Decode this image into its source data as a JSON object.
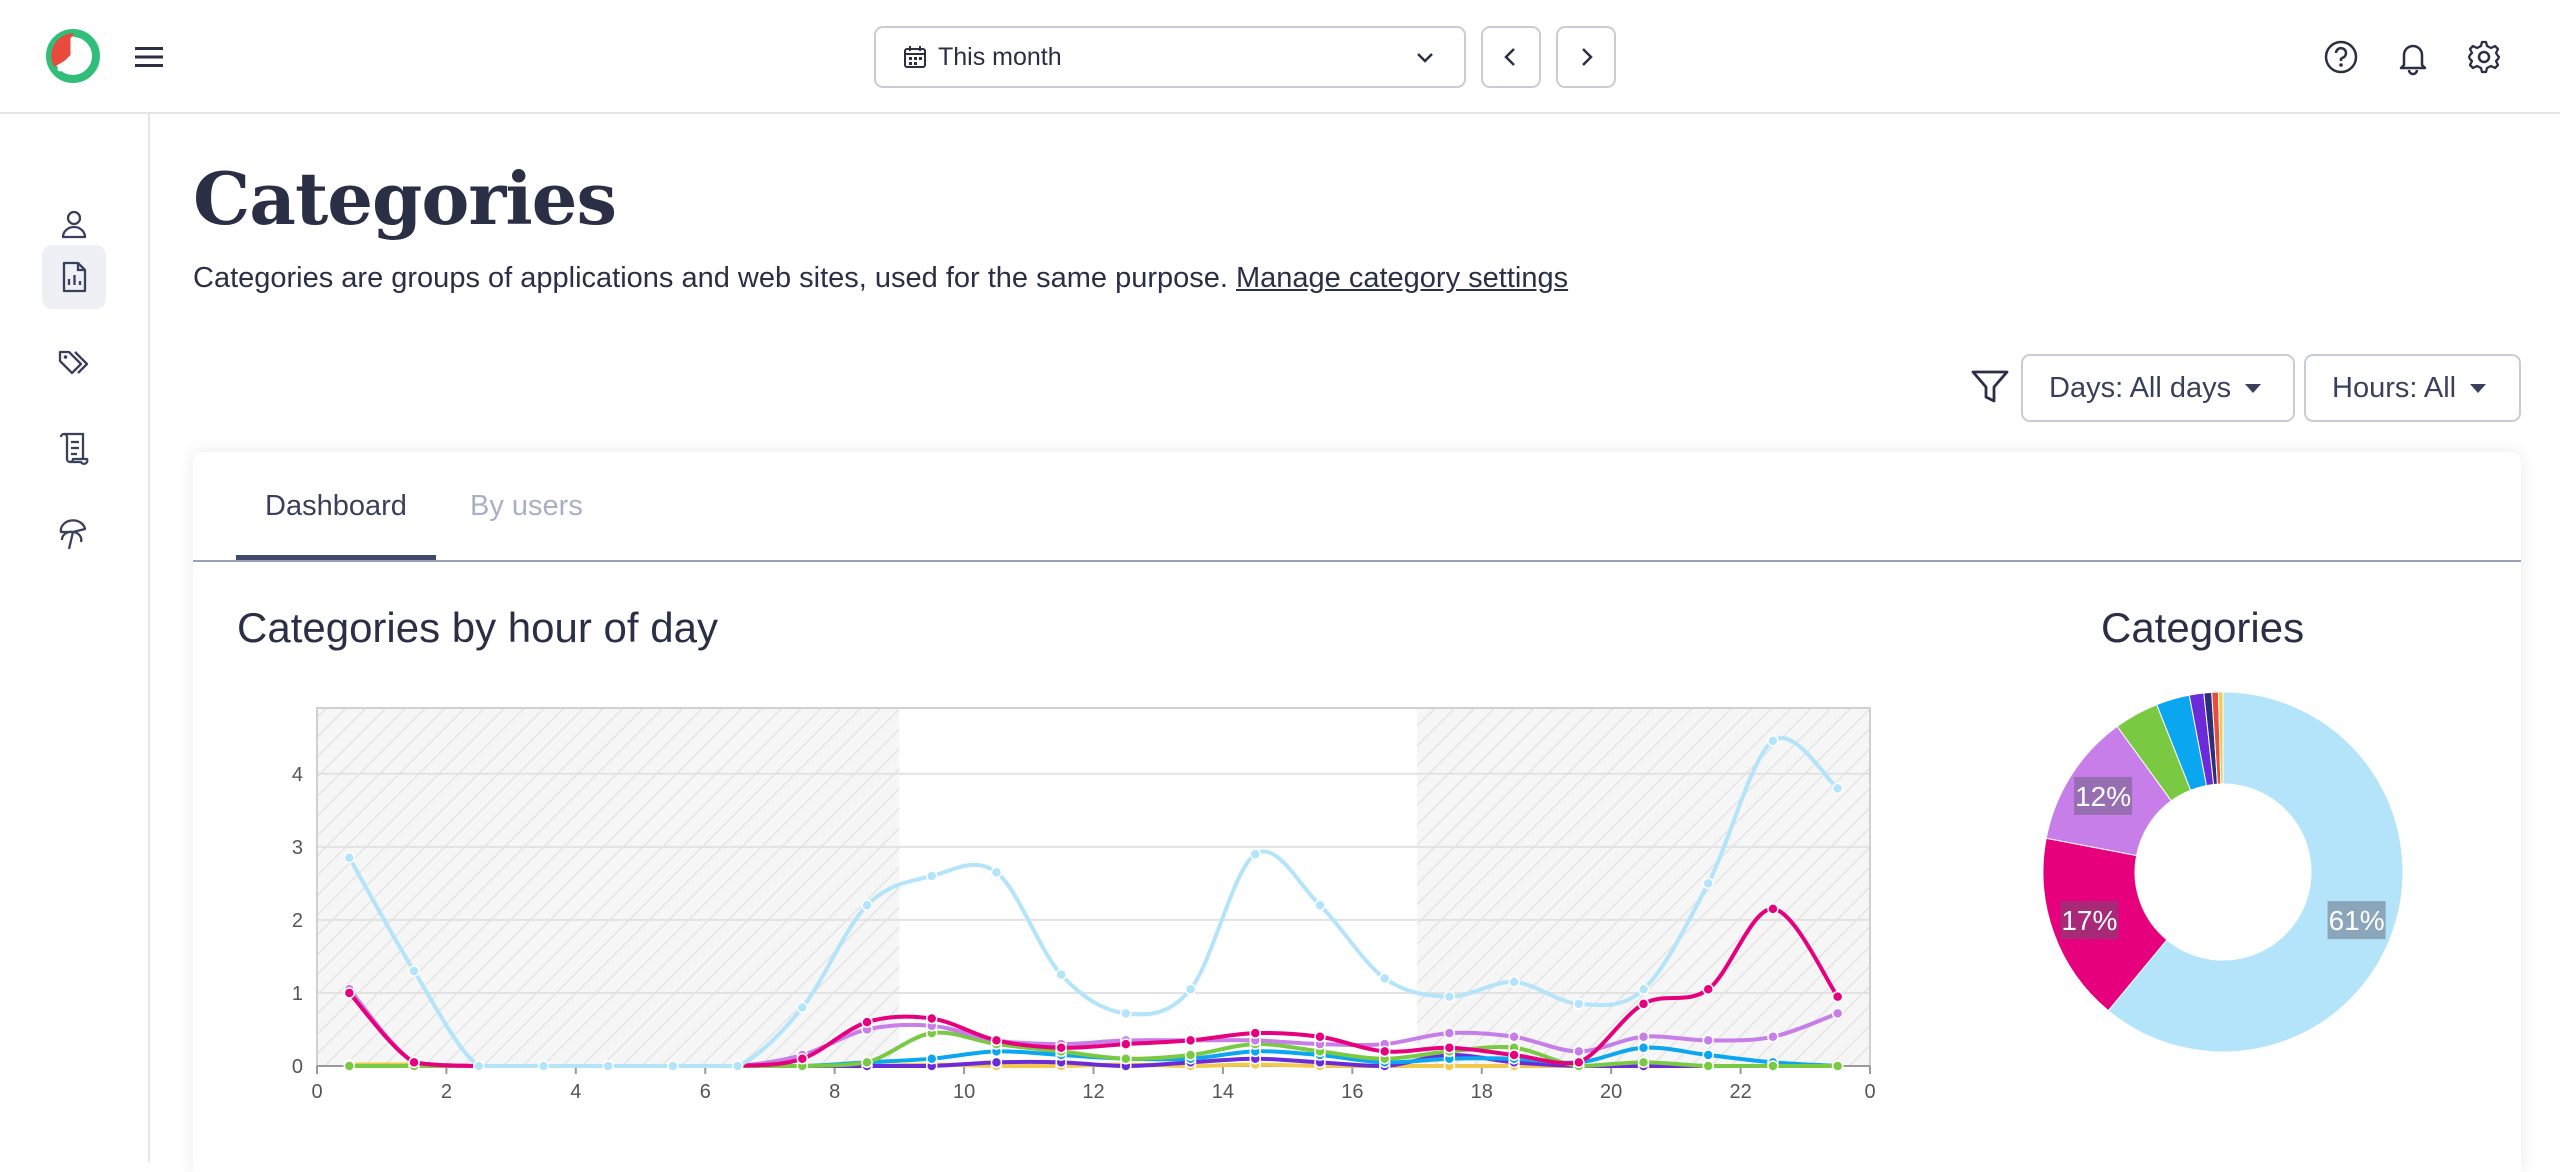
{
  "header": {
    "date_range": "This month",
    "icons": [
      "logo",
      "hamburger-icon",
      "calendar-icon",
      "chevron-down-icon",
      "chevron-left-icon",
      "chevron-right-icon",
      "help-icon",
      "bell-icon",
      "gear-icon"
    ]
  },
  "sidebar": {
    "items": [
      {
        "name": "user-icon",
        "active": false
      },
      {
        "name": "report-icon",
        "active": true
      },
      {
        "name": "tags-icon",
        "active": false
      },
      {
        "name": "log-icon",
        "active": false
      },
      {
        "name": "vacation-icon",
        "active": false
      }
    ]
  },
  "page": {
    "title": "Categories",
    "description": "Categories are groups of applications and web sites, used for the same purpose.",
    "manage_link": "Manage category settings"
  },
  "filters": {
    "days": "Days: All days",
    "hours": "Hours: All"
  },
  "tabs": [
    {
      "label": "Dashboard",
      "active": true
    },
    {
      "label": "By users",
      "active": false
    }
  ],
  "colors": {
    "accent": "#3f4a6e",
    "lightblue": "#b3e4f9",
    "pink": "#e6007e",
    "violet": "#c77ee8",
    "green": "#7ac943",
    "blue": "#0aa6ef",
    "purple": "#6c2bd9",
    "gold": "#f2c94c",
    "red": "#e74c3c"
  },
  "chart_data": [
    {
      "type": "line",
      "title": "Categories by hour of day",
      "x": [
        0.5,
        1.5,
        2.5,
        3.5,
        4.5,
        5.5,
        6.5,
        7.5,
        8.5,
        9.5,
        10.5,
        11.5,
        12.5,
        13.5,
        14.5,
        15.5,
        16.5,
        17.5,
        18.5,
        19.5,
        20.5,
        21.5,
        22.5,
        23.5
      ],
      "xticks": [
        "0",
        "2",
        "4",
        "6",
        "8",
        "10",
        "12",
        "14",
        "16",
        "18",
        "20",
        "22",
        "0"
      ],
      "yticks": [
        "0",
        "1",
        "2",
        "3",
        "4"
      ],
      "ylim": [
        0,
        4.9
      ],
      "shaded_ranges": [
        [
          0,
          9
        ],
        [
          17,
          24
        ]
      ],
      "series": [
        {
          "color": "#b3e4f9",
          "values": [
            2.85,
            1.3,
            0,
            0,
            0,
            0,
            0,
            0.8,
            2.2,
            2.6,
            2.65,
            1.25,
            0.72,
            1.05,
            2.9,
            2.2,
            1.2,
            0.95,
            1.15,
            0.85,
            1.05,
            2.5,
            4.45,
            3.8
          ]
        },
        {
          "color": "#e6007e",
          "values": [
            1.0,
            0.05,
            0,
            0,
            0,
            0,
            0,
            0.1,
            0.6,
            0.65,
            0.35,
            0.25,
            0.3,
            0.35,
            0.45,
            0.4,
            0.2,
            0.25,
            0.15,
            0.05,
            0.85,
            1.05,
            2.15,
            0.95
          ]
        },
        {
          "color": "#c77ee8",
          "values": [
            1.05,
            0.05,
            0,
            0,
            0,
            0,
            0,
            0.15,
            0.5,
            0.55,
            0.35,
            0.3,
            0.35,
            0.35,
            0.35,
            0.3,
            0.3,
            0.45,
            0.4,
            0.2,
            0.4,
            0.35,
            0.4,
            0.72
          ]
        },
        {
          "color": "#7ac943",
          "values": [
            0,
            0,
            0,
            0,
            0,
            0,
            0,
            0,
            0.05,
            0.45,
            0.3,
            0.2,
            0.1,
            0.15,
            0.3,
            0.2,
            0.1,
            0.2,
            0.25,
            0,
            0.05,
            0,
            0,
            0
          ]
        },
        {
          "color": "#0aa6ef",
          "values": [
            0,
            0,
            0,
            0,
            0,
            0,
            0,
            0,
            0.05,
            0.1,
            0.2,
            0.15,
            0.1,
            0.1,
            0.2,
            0.15,
            0.05,
            0.1,
            0.1,
            0.05,
            0.25,
            0.15,
            0.05,
            0
          ]
        },
        {
          "color": "#6c2bd9",
          "values": [
            0,
            0,
            0,
            0,
            0,
            0,
            0,
            0,
            0,
            0,
            0.05,
            0.05,
            0,
            0.05,
            0.1,
            0.05,
            0,
            0.15,
            0.05,
            0,
            0,
            0,
            0,
            0
          ]
        },
        {
          "color": "#f2c94c",
          "values": [
            0.02,
            0.02,
            0,
            0,
            0,
            0,
            0,
            0,
            0,
            0.02,
            0,
            0,
            0.02,
            0,
            0.02,
            0,
            0,
            0,
            0,
            0,
            0,
            0,
            0,
            0
          ]
        }
      ]
    },
    {
      "type": "pie",
      "title": "Categories",
      "slices": [
        {
          "value": 61,
          "label": "61%",
          "color": "#b3e4f9"
        },
        {
          "value": 17,
          "label": "17%",
          "color": "#e6007e"
        },
        {
          "value": 12,
          "label": "12%",
          "color": "#c77ee8"
        },
        {
          "value": 4,
          "label": "",
          "color": "#7ac943"
        },
        {
          "value": 3,
          "label": "",
          "color": "#0aa6ef"
        },
        {
          "value": 1.3,
          "label": "",
          "color": "#6c2bd9"
        },
        {
          "value": 0.7,
          "label": "",
          "color": "#2b2f7a"
        },
        {
          "value": 0.6,
          "label": "",
          "color": "#e74c3c"
        },
        {
          "value": 0.4,
          "label": "",
          "color": "#f2c94c"
        }
      ]
    }
  ]
}
